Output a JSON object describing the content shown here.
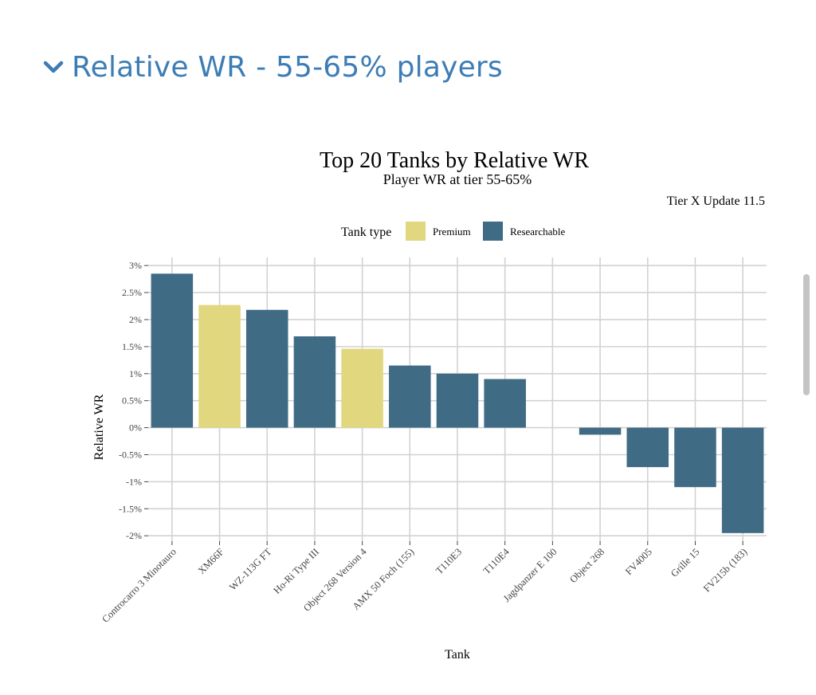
{
  "section": {
    "title": "Relative WR - 55-65% players"
  },
  "chart_data": {
    "type": "bar",
    "title": "Top 20 Tanks by Relative WR",
    "subtitle": "Player WR at tier 55-65%",
    "caption": "Tier X Update 11.5",
    "xlabel": "Tank",
    "ylabel": "Relative WR",
    "legend": {
      "title": "Tank type",
      "placement": "top",
      "entries": [
        {
          "name": "Premium",
          "color": "#e1d77f"
        },
        {
          "name": "Researchable",
          "color": "#3f6b85"
        }
      ]
    },
    "ylim": [
      -2.1,
      3.15
    ],
    "yticks": [
      3,
      2.5,
      2,
      1.5,
      1,
      0.5,
      0,
      -0.5,
      -1,
      -1.5,
      -2
    ],
    "ytick_labels": [
      "3%",
      "2.5%",
      "2%",
      "1.5%",
      "1%",
      "0.5%",
      "0%",
      "-0.5%",
      "-1%",
      "-1.5%",
      "-2%"
    ],
    "grid": true,
    "categories": [
      "Controcarro 3 Minotauro",
      "XM66F",
      "WZ-113G FT",
      "Ho-Ri Type III",
      "Object 268 Version 4",
      "AMX 50 Foch (155)",
      "T110E3",
      "T110E4",
      "Jagdpanzer E 100",
      "Object 268",
      "FV4005",
      "Grille 15",
      "FV215b (183)"
    ],
    "values": [
      2.85,
      2.27,
      2.18,
      1.69,
      1.46,
      1.15,
      1.0,
      0.9,
      0.0,
      -0.13,
      -0.73,
      -1.1,
      -1.95
    ],
    "types": [
      "Researchable",
      "Premium",
      "Researchable",
      "Researchable",
      "Premium",
      "Researchable",
      "Researchable",
      "Researchable",
      "Researchable",
      "Researchable",
      "Researchable",
      "Researchable",
      "Researchable"
    ]
  }
}
